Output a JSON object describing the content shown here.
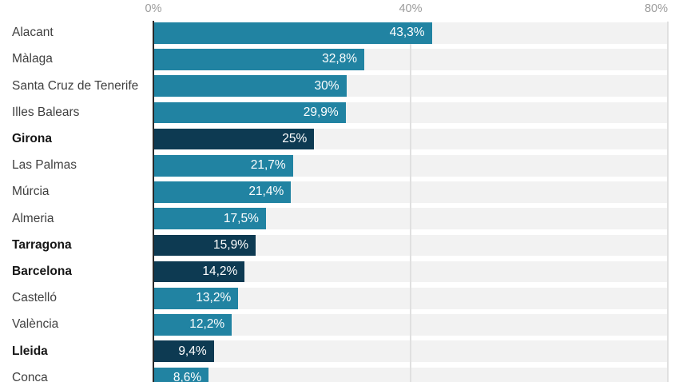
{
  "colors": {
    "bar_teal": "#2183a2",
    "bar_navy": "#0d3a52",
    "track_bg": "#f2f2f2",
    "gridline": "#e0e0e0",
    "axis_line": "#2a2a2a",
    "tick_text": "#9b9b9b",
    "label_text": "#3f3f3f",
    "label_text_bold": "#161616",
    "value_text": "#ffffff"
  },
  "chart_data": {
    "type": "bar",
    "orientation": "horizontal",
    "title": "",
    "xlabel": "",
    "ylabel": "",
    "xlim": [
      0,
      80
    ],
    "grid": "vertical-gridlines-at-ticks",
    "legend": "none",
    "x_ticks": [
      {
        "label": "0%",
        "value": 0,
        "align": "center"
      },
      {
        "label": "40%",
        "value": 40,
        "align": "center"
      },
      {
        "label": "80%",
        "value": 80,
        "align": "right"
      }
    ],
    "categories": [
      "Alacant",
      "Màlaga",
      "Santa Cruz de Tenerife",
      "Illes Balears",
      "Girona",
      "Las Palmas",
      "Múrcia",
      "Almeria",
      "Tarragona",
      "Barcelona",
      "Castelló",
      "València",
      "Lleida",
      "Conca"
    ],
    "values": [
      43.3,
      32.8,
      30,
      29.9,
      25,
      21.7,
      21.4,
      17.5,
      15.9,
      14.2,
      13.2,
      12.2,
      9.4,
      8.6
    ],
    "value_labels": [
      "43,3%",
      "32,8%",
      "30%",
      "29,9%",
      "25%",
      "21,7%",
      "21,4%",
      "17,5%",
      "15,9%",
      "14,2%",
      "13,2%",
      "12,2%",
      "9,4%",
      "8,6%"
    ],
    "highlighted": [
      false,
      false,
      false,
      false,
      true,
      false,
      false,
      false,
      true,
      true,
      false,
      false,
      true,
      false
    ],
    "highlight_style": "dark-navy-bar-with-bold-label"
  }
}
